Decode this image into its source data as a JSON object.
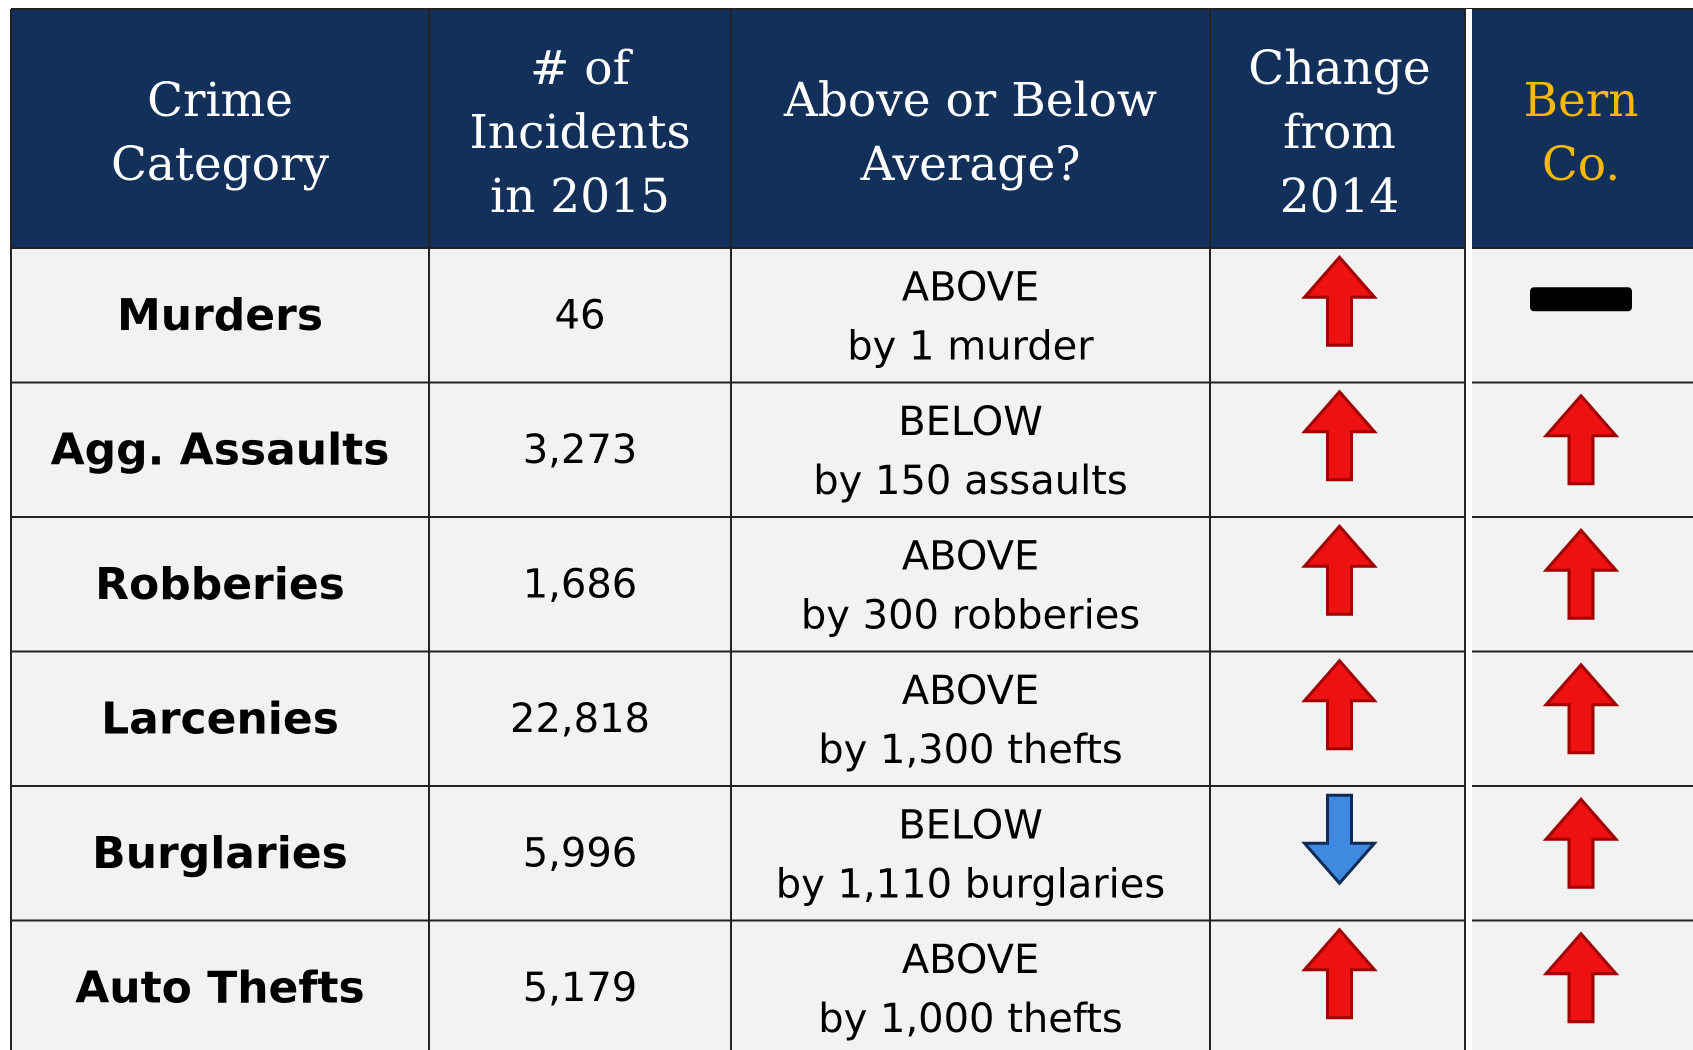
{
  "table": {
    "header": [
      [
        "Crime",
        "Category"
      ],
      [
        "# of",
        "Incidents",
        "in 2015"
      ],
      [
        "Above or Below",
        "Average?"
      ],
      [
        "Change",
        "from",
        "2014"
      ],
      [
        "Bern",
        "Co."
      ]
    ],
    "rows": [
      {
        "category": "Murders",
        "incidents": "46",
        "comparison": [
          "ABOVE",
          "by 1 murder"
        ],
        "change": "up",
        "bern": "dash"
      },
      {
        "category": "Agg. Assaults",
        "incidents": "3,273",
        "comparison": [
          "BELOW",
          "by 150 assaults"
        ],
        "change": "up",
        "bern": "up"
      },
      {
        "category": "Robberies",
        "incidents": "1,686",
        "comparison": [
          "ABOVE",
          "by 300 robberies"
        ],
        "change": "up",
        "bern": "up"
      },
      {
        "category": "Larcenies",
        "incidents": "22,818",
        "comparison": [
          "ABOVE",
          "by 1,300 thefts"
        ],
        "change": "up",
        "bern": "up"
      },
      {
        "category": "Burglaries",
        "incidents": "5,996",
        "comparison": [
          "BELOW",
          "by 1,110 burglaries"
        ],
        "change": "down",
        "bern": "up"
      },
      {
        "category": "Auto Thefts",
        "incidents": "5,179",
        "comparison": [
          "ABOVE",
          "by 1,000 thefts"
        ],
        "change": "up",
        "bern": "up"
      }
    ]
  }
}
